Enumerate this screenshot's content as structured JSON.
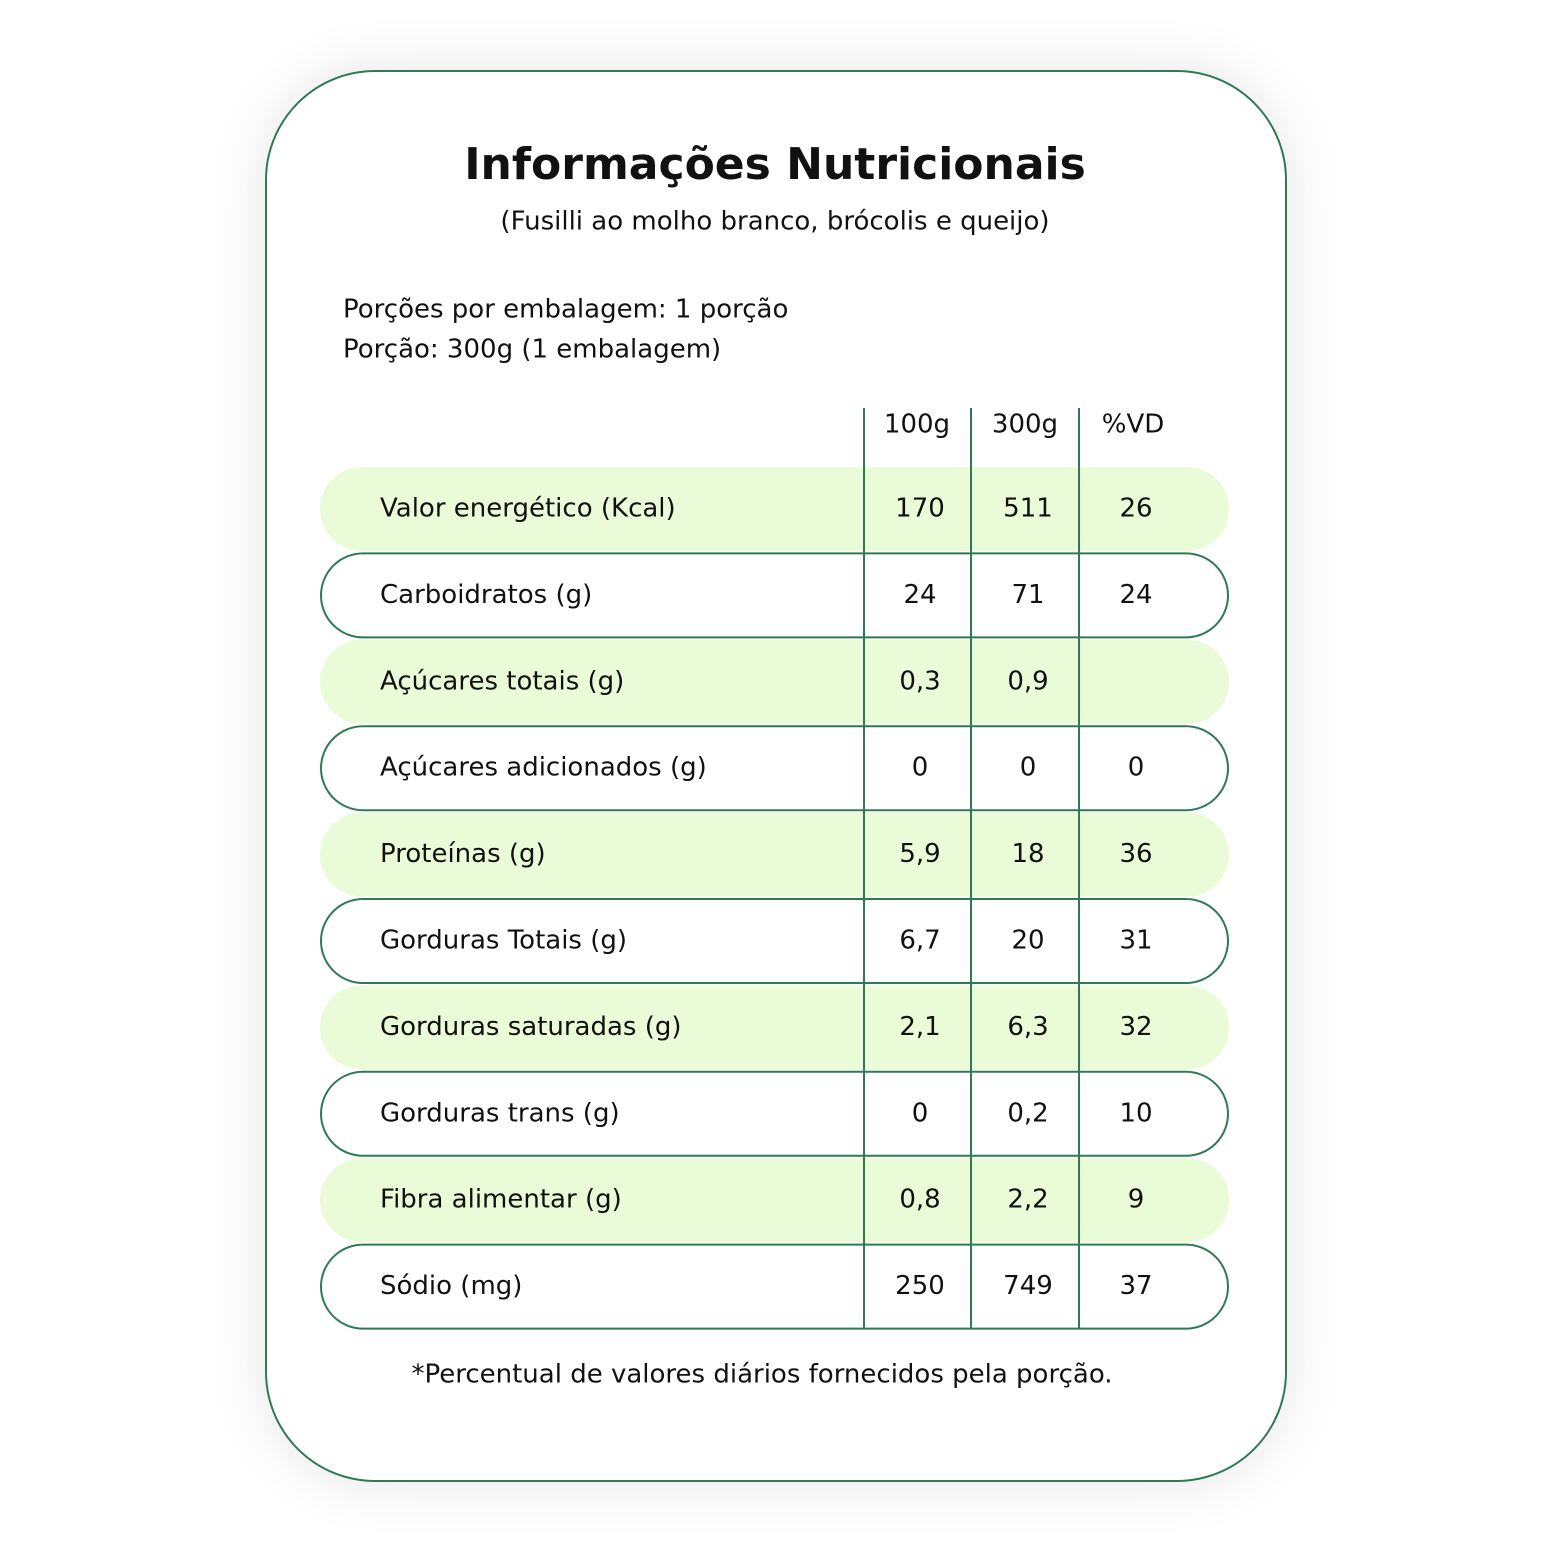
{
  "header": {
    "title": "Informações Nutricionais",
    "subtitle": "(Fusilli ao molho branco, brócolis e queijo)"
  },
  "serving": [
    "Porções por embalagem: 1 porção",
    "Porção: 300g (1 embalagem)"
  ],
  "table": {
    "columns": [
      "100g",
      "300g",
      "%VD"
    ],
    "rows": [
      [
        "Valor energético (Kcal)",
        "170",
        "511",
        "26"
      ],
      [
        "Carboidratos (g)",
        "24",
        "71",
        "24"
      ],
      [
        "Açúcares totais (g)",
        "0,3",
        "0,9",
        null
      ],
      [
        "Açúcares adicionados (g)",
        "0",
        "0",
        "0"
      ],
      [
        "Proteínas (g)",
        "5,9",
        "18",
        "36"
      ],
      [
        "Gorduras Totais (g)",
        "6,7",
        "20",
        "31"
      ],
      [
        "Gorduras saturadas (g)",
        "2,1",
        "6,3",
        "32"
      ],
      [
        "Gorduras trans (g)",
        "0",
        "0,2",
        "10"
      ],
      [
        "Fibra alimentar (g)",
        "0,8",
        "2,2",
        "9"
      ],
      [
        "Sódio (mg)",
        "250",
        "749",
        "37"
      ]
    ]
  },
  "footnote": "*Percentual de valores diários fornecidos pela porção."
}
